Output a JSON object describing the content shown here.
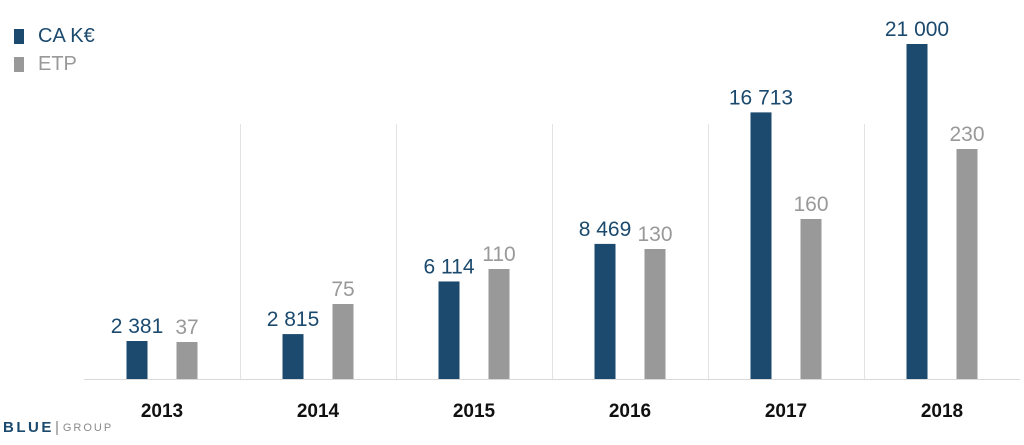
{
  "chart_data": {
    "type": "bar",
    "categories": [
      "2013",
      "2014",
      "2015",
      "2016",
      "2017",
      "2018"
    ],
    "series": [
      {
        "name": "CA K€",
        "color": "#1b4a6e",
        "values": [
          2381,
          2815,
          6114,
          8469,
          16713,
          21000
        ],
        "labels": [
          "2 381",
          "2 815",
          "6 114",
          "8 469",
          "16 713",
          "21 000"
        ],
        "axis": "left",
        "ylim": [
          0,
          21000
        ]
      },
      {
        "name": "ETP",
        "color": "#999999",
        "values": [
          37,
          75,
          110,
          130,
          160,
          230
        ],
        "labels": [
          "37",
          "75",
          "110",
          "130",
          "160",
          "230"
        ],
        "axis": "right",
        "ylim": [
          0,
          250
        ]
      }
    ],
    "legend_position": "top-left",
    "grid": "vertical separators between categories"
  },
  "logo": {
    "main": "BLUE",
    "sub": "GROUP"
  }
}
